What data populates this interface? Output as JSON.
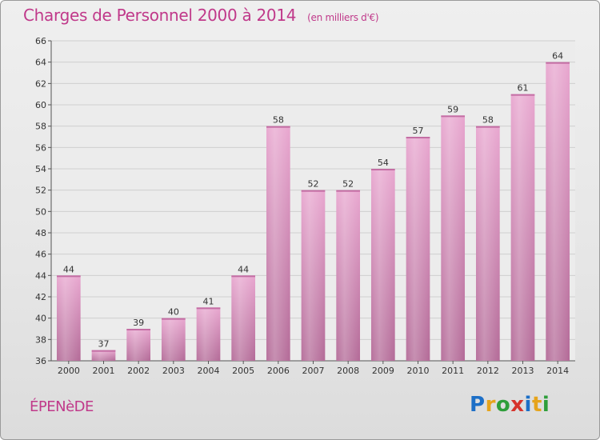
{
  "header": {
    "title": "Charges de Personnel 2000 à 2014",
    "subtitle": "(en milliers d'€)"
  },
  "footer": {
    "town": "ÉPENèDE",
    "logo": [
      "P",
      "r",
      "o",
      "x",
      "i",
      "t",
      "i"
    ],
    "logo_colors": [
      "#1d6fc7",
      "#e6a41c",
      "#2e9e3a",
      "#d6332c",
      "#1d6fc7",
      "#e6a41c",
      "#2e9e3a"
    ]
  },
  "chart_data": {
    "type": "bar",
    "title": "Charges de Personnel 2000 à 2014",
    "subtitle": "(en milliers d'€)",
    "categories": [
      "2000",
      "2001",
      "2002",
      "2003",
      "2004",
      "2005",
      "2006",
      "2007",
      "2008",
      "2009",
      "2010",
      "2011",
      "2012",
      "2013",
      "2014"
    ],
    "values": [
      44,
      37,
      39,
      40,
      41,
      44,
      58,
      52,
      52,
      54,
      57,
      59,
      58,
      61,
      64
    ],
    "ylim": [
      36,
      66
    ],
    "yticks": [
      36,
      38,
      40,
      42,
      44,
      46,
      48,
      50,
      52,
      54,
      56,
      58,
      60,
      62,
      64,
      66
    ],
    "grid": true,
    "bar_color": "#d88bb8",
    "title_color": "#c0398a"
  }
}
